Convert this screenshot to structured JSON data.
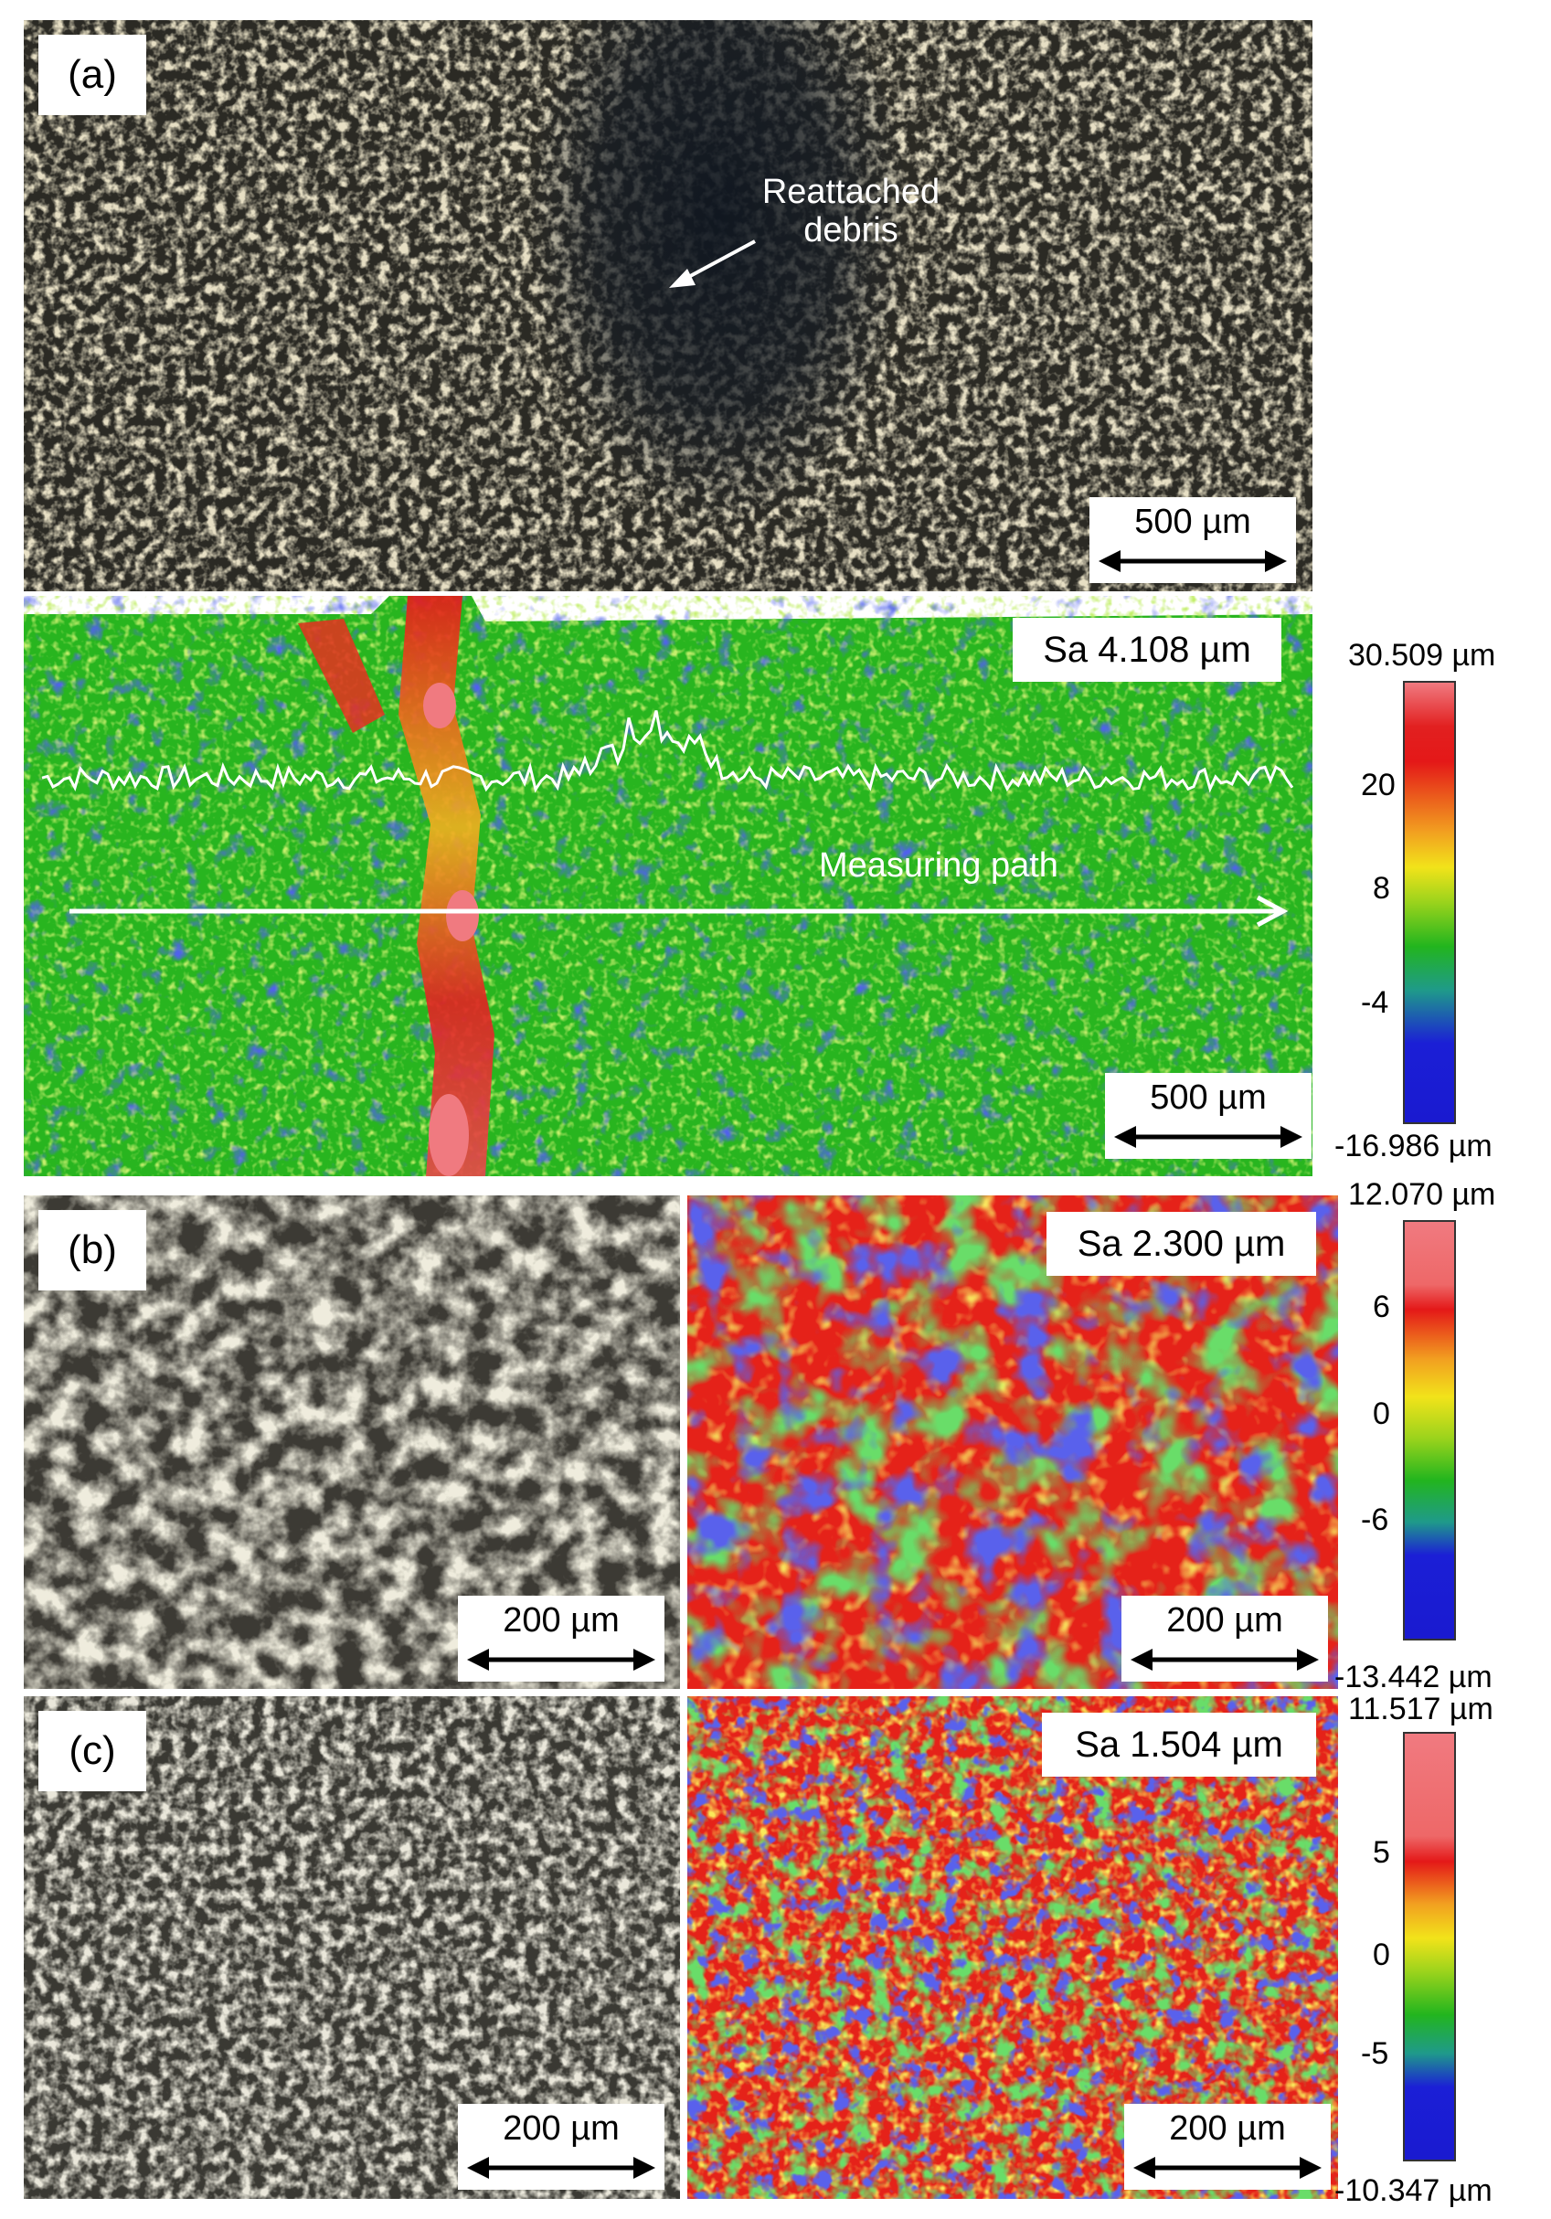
{
  "panel_a": {
    "label": "(a)",
    "annotation": [
      "Reattached",
      "debris"
    ],
    "optical_scale": "500 µm",
    "height_map": {
      "sa": "Sa 4.108 µm",
      "path_label": "Measuring path",
      "scale": "500 µm"
    },
    "colorbar": {
      "max": "30.509 µm",
      "min": "-16.986 µm",
      "ticks": [
        "20",
        "8",
        "-4"
      ]
    }
  },
  "panel_b": {
    "label": "(b)",
    "optical_scale": "200 µm",
    "height_map": {
      "sa": "Sa 2.300 µm",
      "scale": "200 µm"
    },
    "colorbar": {
      "max": "12.070 µm",
      "min": "-13.442 µm",
      "ticks": [
        "6",
        "0",
        "-6"
      ]
    }
  },
  "panel_c": {
    "label": "(c)",
    "optical_scale": "200 µm",
    "height_map": {
      "sa": "Sa 1.504 µm",
      "scale": "200 µm"
    },
    "colorbar": {
      "max": "11.517 µm",
      "min": "-10.347 µm",
      "ticks": [
        "5",
        "0",
        "-5"
      ]
    }
  },
  "colors": {
    "map_green": "#22b51e",
    "map_blue": "#1b1fd6",
    "map_red": "#e41818",
    "map_yellow": "#f2e31a",
    "map_pink": "#f07a80",
    "optical_dark": "#2a2820",
    "optical_light": "#c9b98a"
  }
}
